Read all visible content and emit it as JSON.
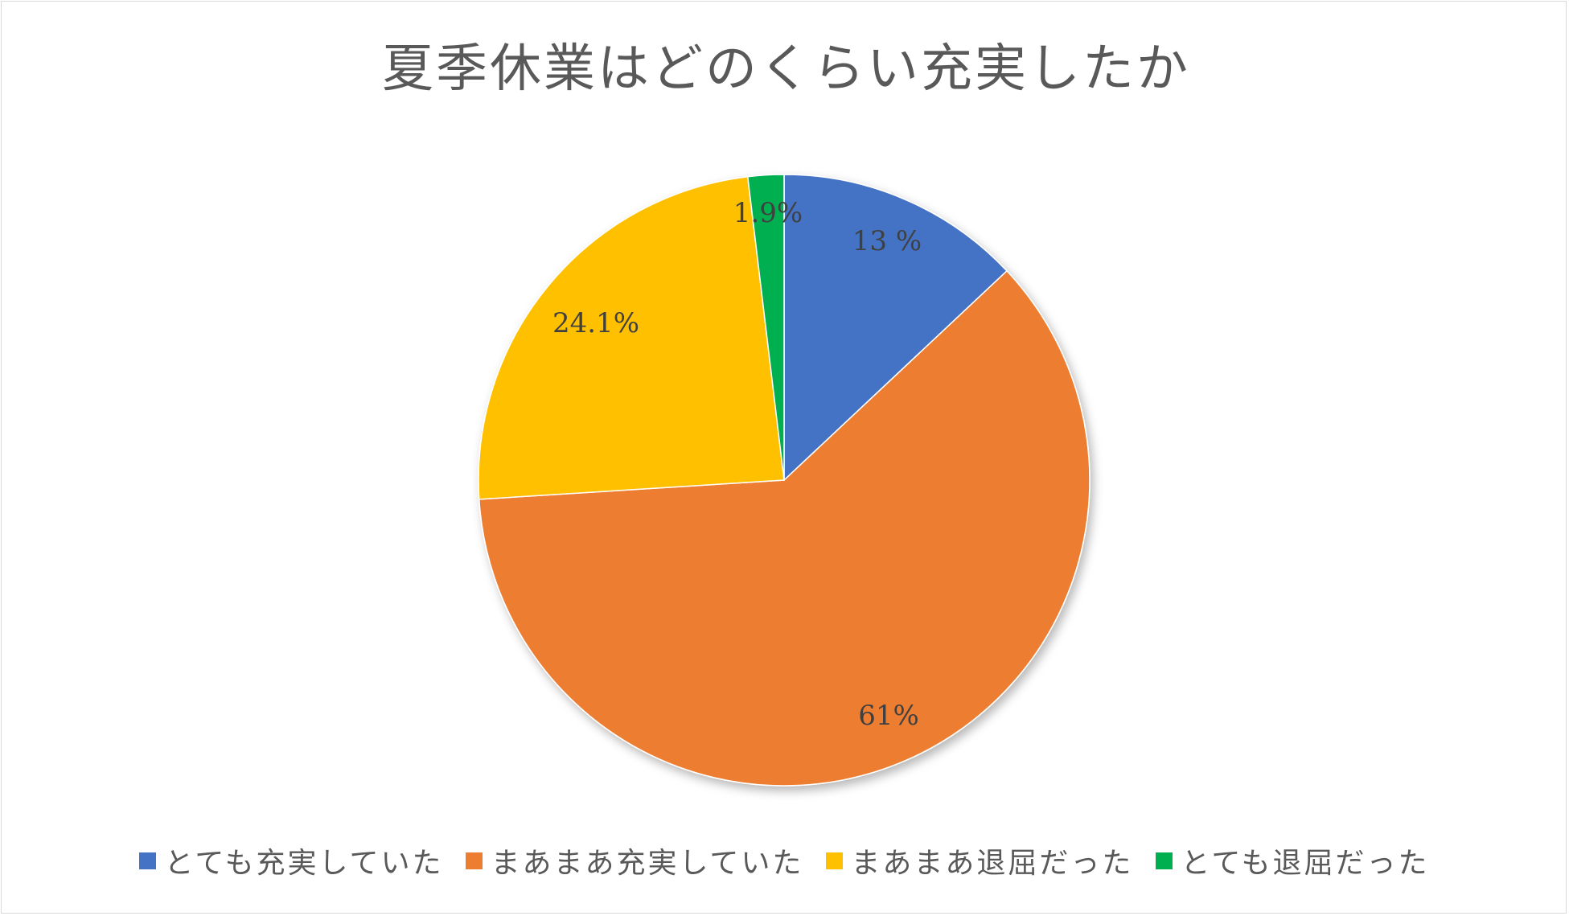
{
  "chart_data": {
    "type": "pie",
    "title": "夏季休業はどのくらい充実したか",
    "start_angle_deg": 0,
    "direction": "clockwise",
    "legend_position": "bottom",
    "slices": [
      {
        "name": "とても充実していた",
        "value": 13,
        "label": "13 %",
        "color": "#4472c4"
      },
      {
        "name": "まあまあ充実していた",
        "value": 61,
        "label": "61%",
        "color": "#ed7d31"
      },
      {
        "name": "まあまあ退屈だった",
        "value": 24.1,
        "label": "24.1%",
        "color": "#ffc000"
      },
      {
        "name": "とても退屈だった",
        "value": 1.9,
        "label": "1.9%",
        "color": "#00b050"
      }
    ]
  }
}
